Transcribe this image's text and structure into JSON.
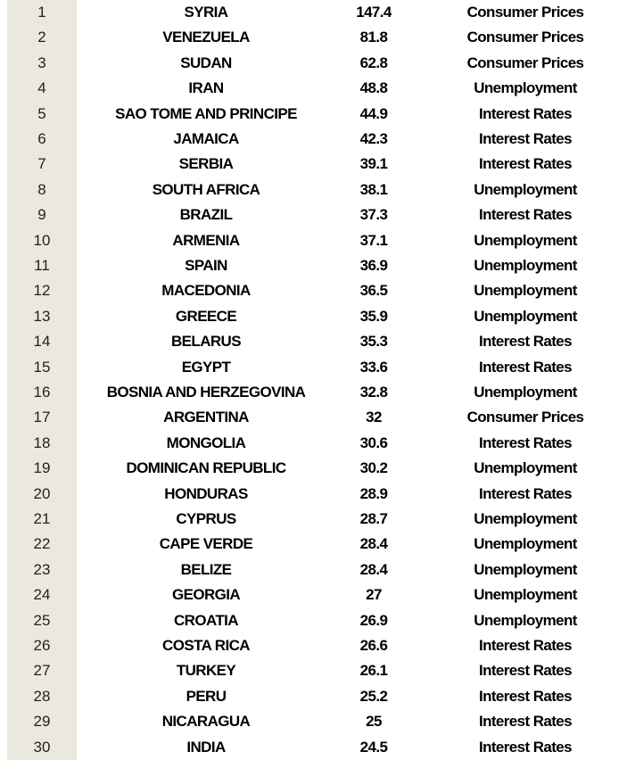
{
  "rows": [
    {
      "num": "1",
      "country": "SYRIA",
      "value": "147.4",
      "indicator": "Consumer Prices"
    },
    {
      "num": "2",
      "country": "VENEZUELA",
      "value": "81.8",
      "indicator": "Consumer Prices"
    },
    {
      "num": "3",
      "country": "SUDAN",
      "value": "62.8",
      "indicator": "Consumer Prices"
    },
    {
      "num": "4",
      "country": "IRAN",
      "value": "48.8",
      "indicator": "Unemployment"
    },
    {
      "num": "5",
      "country": "SAO TOME AND PRINCIPE",
      "value": "44.9",
      "indicator": "Interest Rates"
    },
    {
      "num": "6",
      "country": "JAMAICA",
      "value": "42.3",
      "indicator": "Interest Rates"
    },
    {
      "num": "7",
      "country": "SERBIA",
      "value": "39.1",
      "indicator": "Interest Rates"
    },
    {
      "num": "8",
      "country": "SOUTH AFRICA",
      "value": "38.1",
      "indicator": "Unemployment"
    },
    {
      "num": "9",
      "country": "BRAZIL",
      "value": "37.3",
      "indicator": "Interest Rates"
    },
    {
      "num": "10",
      "country": "ARMENIA",
      "value": "37.1",
      "indicator": "Unemployment"
    },
    {
      "num": "11",
      "country": "SPAIN",
      "value": "36.9",
      "indicator": "Unemployment"
    },
    {
      "num": "12",
      "country": "MACEDONIA",
      "value": "36.5",
      "indicator": "Unemployment"
    },
    {
      "num": "13",
      "country": "GREECE",
      "value": "35.9",
      "indicator": "Unemployment"
    },
    {
      "num": "14",
      "country": "BELARUS",
      "value": "35.3",
      "indicator": "Interest Rates"
    },
    {
      "num": "15",
      "country": "EGYPT",
      "value": "33.6",
      "indicator": "Interest Rates"
    },
    {
      "num": "16",
      "country": "BOSNIA AND HERZEGOVINA",
      "value": "32.8",
      "indicator": "Unemployment"
    },
    {
      "num": "17",
      "country": "ARGENTINA",
      "value": "32",
      "indicator": "Consumer Prices"
    },
    {
      "num": "18",
      "country": "MONGOLIA",
      "value": "30.6",
      "indicator": "Interest Rates"
    },
    {
      "num": "19",
      "country": "DOMINICAN REPUBLIC",
      "value": "30.2",
      "indicator": "Unemployment"
    },
    {
      "num": "20",
      "country": "HONDURAS",
      "value": "28.9",
      "indicator": "Interest Rates"
    },
    {
      "num": "21",
      "country": "CYPRUS",
      "value": "28.7",
      "indicator": "Unemployment"
    },
    {
      "num": "22",
      "country": "CAPE VERDE",
      "value": "28.4",
      "indicator": "Unemployment"
    },
    {
      "num": "23",
      "country": "BELIZE",
      "value": "28.4",
      "indicator": "Unemployment"
    },
    {
      "num": "24",
      "country": "GEORGIA",
      "value": "27",
      "indicator": "Unemployment"
    },
    {
      "num": "25",
      "country": "CROATIA",
      "value": "26.9",
      "indicator": "Unemployment"
    },
    {
      "num": "26",
      "country": "COSTA RICA",
      "value": "26.6",
      "indicator": "Interest Rates"
    },
    {
      "num": "27",
      "country": "TURKEY",
      "value": "26.1",
      "indicator": "Interest Rates"
    },
    {
      "num": "28",
      "country": "PERU",
      "value": "25.2",
      "indicator": "Interest Rates"
    },
    {
      "num": "29",
      "country": "NICARAGUA",
      "value": "25",
      "indicator": "Interest Rates"
    },
    {
      "num": "30",
      "country": "INDIA",
      "value": "24.5",
      "indicator": "Interest Rates"
    }
  ]
}
